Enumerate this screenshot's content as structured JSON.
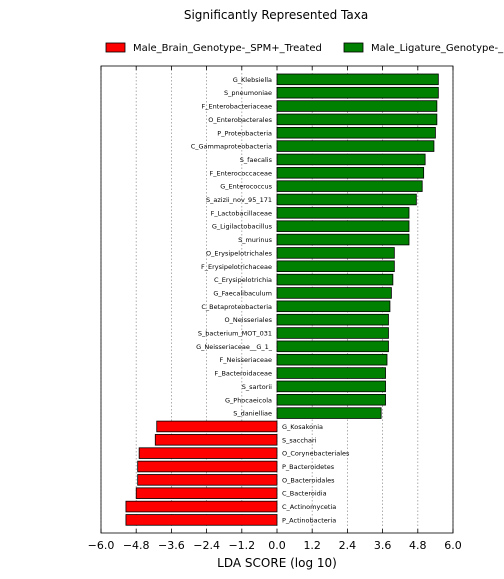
{
  "chart_data": {
    "type": "bar",
    "orientation": "horizontal",
    "title": "Significantly Represented Taxa",
    "xlabel": "LDA SCORE (log 10)",
    "ylabel": "",
    "xlim": [
      -6.0,
      6.0
    ],
    "xticks": [
      -6.0,
      -4.8,
      -3.6,
      -2.4,
      -1.2,
      0.0,
      1.2,
      2.4,
      3.6,
      4.8,
      6.0
    ],
    "xtick_labels": [
      "−6.0",
      "−4.8",
      "−3.6",
      "−2.4",
      "−1.2",
      "0.0",
      "1.2",
      "2.4",
      "3.6",
      "4.8",
      "6.0"
    ],
    "grid": "vertical dotted",
    "legend_position": "top",
    "series": [
      {
        "name": "Male_Brain_Genotype-_SPM+_Treated",
        "color": "#ff0000"
      },
      {
        "name": "Male_Ligature_Genotype-_",
        "color": "#008000"
      }
    ],
    "bars": [
      {
        "label": "G_Klebsiella",
        "value": 5.5,
        "series": 1
      },
      {
        "label": "S_pneumoniae",
        "value": 5.5,
        "series": 1
      },
      {
        "label": "F_Enterobacteriaceae",
        "value": 5.45,
        "series": 1
      },
      {
        "label": "O_Enterobacterales",
        "value": 5.45,
        "series": 1
      },
      {
        "label": "P_Proteobacteria",
        "value": 5.4,
        "series": 1
      },
      {
        "label": "C_Gammaproteobacteria",
        "value": 5.35,
        "series": 1
      },
      {
        "label": "S_faecalis",
        "value": 5.05,
        "series": 1
      },
      {
        "label": "F_Enterococcaceae",
        "value": 5.0,
        "series": 1
      },
      {
        "label": "G_Enterococcus",
        "value": 4.95,
        "series": 1
      },
      {
        "label": "S_azizii_nov_95_171",
        "value": 4.75,
        "series": 1
      },
      {
        "label": "F_Lactobacillaceae",
        "value": 4.5,
        "series": 1
      },
      {
        "label": "G_Ligilactobacillus",
        "value": 4.5,
        "series": 1
      },
      {
        "label": "S_murinus",
        "value": 4.5,
        "series": 1
      },
      {
        "label": "O_Erysipelotrichales",
        "value": 4.0,
        "series": 1
      },
      {
        "label": "F_Erysipelotrichaceae",
        "value": 4.0,
        "series": 1
      },
      {
        "label": "C_Erysipelotrichia",
        "value": 3.95,
        "series": 1
      },
      {
        "label": "G_Faecalibaculum",
        "value": 3.9,
        "series": 1
      },
      {
        "label": "C_Betaproteobacteria",
        "value": 3.85,
        "series": 1
      },
      {
        "label": "O_Neisseriales",
        "value": 3.8,
        "series": 1
      },
      {
        "label": "S_bacterium_MOT_031",
        "value": 3.8,
        "series": 1
      },
      {
        "label": "G_Neisseriaceae__G_1_",
        "value": 3.8,
        "series": 1
      },
      {
        "label": "F_Neisseriaceae",
        "value": 3.75,
        "series": 1
      },
      {
        "label": "F_Bacteroidaceae",
        "value": 3.7,
        "series": 1
      },
      {
        "label": "S_sartorii",
        "value": 3.7,
        "series": 1
      },
      {
        "label": "G_Phocaeicola",
        "value": 3.7,
        "series": 1
      },
      {
        "label": "S_danielliae",
        "value": 3.55,
        "series": 1
      },
      {
        "label": "G_Kosakonia",
        "value": -4.1,
        "series": 0
      },
      {
        "label": "S_sacchari",
        "value": -4.15,
        "series": 0
      },
      {
        "label": "O_Corynebacteriales",
        "value": -4.7,
        "series": 0
      },
      {
        "label": "P_Bacteroidetes",
        "value": -4.75,
        "series": 0
      },
      {
        "label": "O_Bacteroidales",
        "value": -4.75,
        "series": 0
      },
      {
        "label": "C_Bacteroidia",
        "value": -4.8,
        "series": 0
      },
      {
        "label": "C_Actinomycetia",
        "value": -5.15,
        "series": 0
      },
      {
        "label": "P_Actinobacteria",
        "value": -5.15,
        "series": 0
      }
    ]
  }
}
